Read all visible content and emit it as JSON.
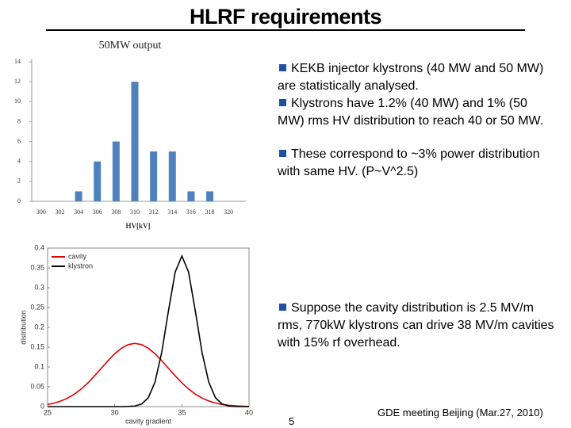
{
  "header": {
    "title": "HLRF requirements"
  },
  "bullets": [
    "KEKB injector klystrons (40 MW and 50 MW) are statistically analysed.",
    "Klystrons have 1.2% (40 MW) and 1% (50 MW) rms HV distribution to reach 40 or 50 MW.",
    "These correspond to ~3% power distribution with same HV. (P~V^2.5)",
    "Suppose the cavity distribution is 2.5 MV/m rms, 770kW klystrons can drive 38 MV/m cavities with 15% rf overhead."
  ],
  "footer": {
    "page": "5",
    "event": "GDE meeting Beijing (Mar.27, 2010)"
  },
  "chart_data": [
    {
      "type": "bar",
      "title": "50MW output",
      "x_label": "HV[kV]",
      "categories": [
        "300",
        "302",
        "304",
        "306",
        "308",
        "310",
        "312",
        "314",
        "316",
        "318",
        "320"
      ],
      "values": [
        0,
        0,
        1,
        4,
        6,
        12,
        5,
        5,
        1,
        1,
        0
      ],
      "color": "#4f81bd",
      "ylim": [
        0,
        14
      ],
      "yticks": [
        0,
        2,
        4,
        6,
        8,
        10,
        12,
        14
      ],
      "grid": false
    },
    {
      "type": "line",
      "x_label": "cavity gradient",
      "y_label": "distribution",
      "x": [
        25,
        25.5,
        26,
        26.5,
        27,
        27.5,
        28,
        28.5,
        29,
        29.5,
        30,
        30.5,
        31,
        31.5,
        32,
        32.5,
        33,
        33.5,
        34,
        34.5,
        35,
        35.5,
        36,
        36.5,
        37,
        37.5,
        38,
        38.5,
        39,
        39.5,
        40
      ],
      "series": [
        {
          "name": "cavity",
          "color": "#e00000",
          "values": [
            0.0054,
            0.009,
            0.0142,
            0.0216,
            0.0316,
            0.0444,
            0.0599,
            0.0777,
            0.0968,
            0.1159,
            0.1333,
            0.1473,
            0.1564,
            0.1596,
            0.1564,
            0.1473,
            0.1333,
            0.1159,
            0.0968,
            0.0777,
            0.0599,
            0.0444,
            0.0316,
            0.0216,
            0.0142,
            0.009,
            0.0054,
            0.0032,
            0.0018,
            0.001,
            0.0005
          ]
        },
        {
          "name": "klystron",
          "color": "#000000",
          "values": [
            0,
            0,
            0,
            0,
            0,
            0,
            0,
            0,
            0,
            0,
            0,
            0,
            0.0003,
            0.0015,
            0.0064,
            0.0223,
            0.0619,
            0.137,
            0.2415,
            0.3393,
            0.38,
            0.3393,
            0.2415,
            0.137,
            0.0619,
            0.0223,
            0.0064,
            0.0015,
            0.0003,
            0,
            0
          ]
        }
      ],
      "xlim": [
        25,
        40
      ],
      "xticks": [
        25,
        30,
        35,
        40
      ],
      "ylim": [
        0,
        0.4
      ],
      "yticks": [
        0,
        0.05,
        0.1,
        0.15,
        0.2,
        0.25,
        0.3,
        0.35,
        0.4
      ],
      "legend": "top-left",
      "grid": false
    }
  ]
}
